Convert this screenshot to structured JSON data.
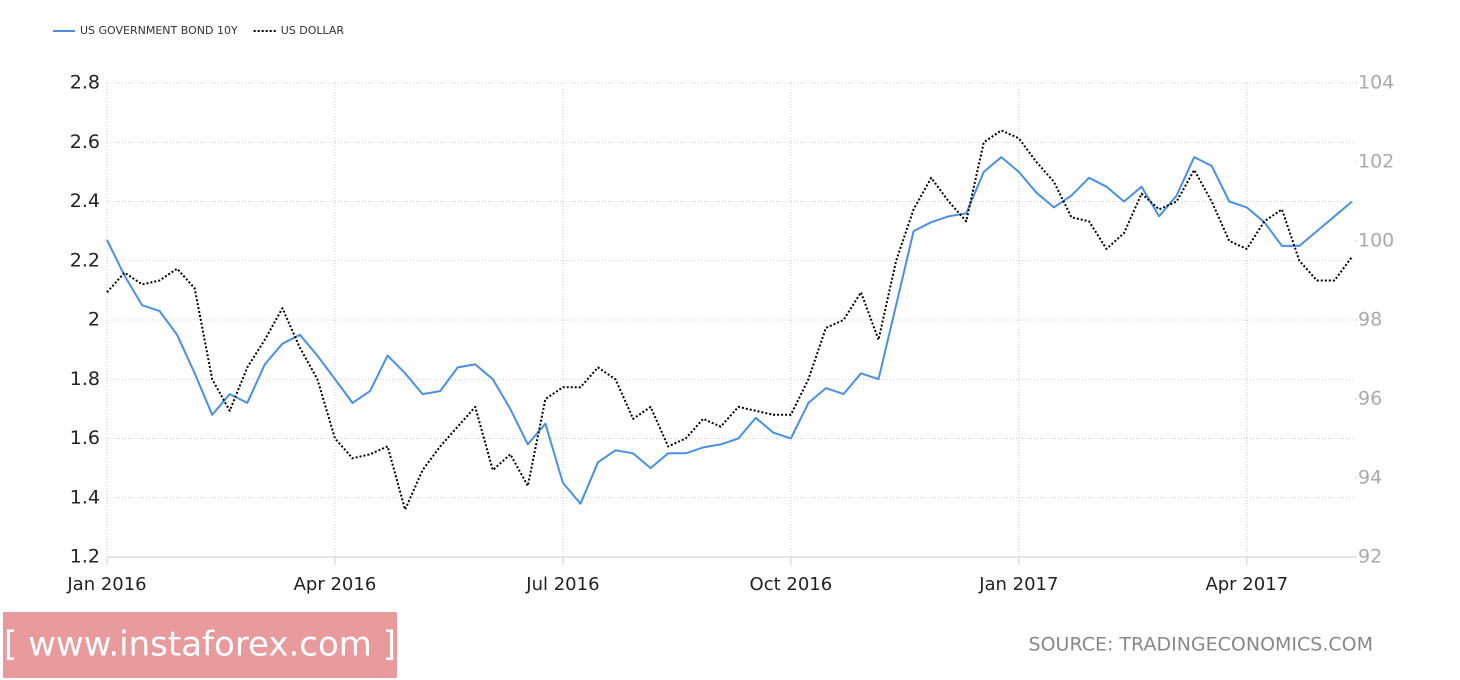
{
  "chart_data": {
    "type": "line",
    "legend": "top-left",
    "grid": true,
    "categories": [
      "Jan 2016",
      null,
      null,
      null,
      null,
      null,
      null,
      null,
      null,
      null,
      null,
      null,
      null,
      "Apr 2016",
      null,
      null,
      null,
      null,
      null,
      null,
      null,
      null,
      null,
      null,
      null,
      null,
      "Jul 2016",
      null,
      null,
      null,
      null,
      null,
      null,
      null,
      null,
      null,
      null,
      null,
      null,
      "Oct 2016",
      null,
      null,
      null,
      null,
      null,
      null,
      null,
      null,
      null,
      null,
      null,
      null,
      "Jan 2017",
      null,
      null,
      null,
      null,
      null,
      null,
      null,
      null,
      null,
      null,
      null,
      null,
      "Apr 2017",
      null,
      null,
      null,
      null,
      null,
      null
    ],
    "series": [
      {
        "name": "US GOVERNMENT BOND 10Y",
        "color": "#4a90e2",
        "style": "solid",
        "axis": "y",
        "values": [
          2.27,
          2.15,
          2.05,
          2.03,
          1.95,
          1.82,
          1.68,
          1.75,
          1.72,
          1.85,
          1.92,
          1.95,
          1.88,
          1.8,
          1.72,
          1.76,
          1.88,
          1.82,
          1.75,
          1.76,
          1.84,
          1.85,
          1.8,
          1.7,
          1.58,
          1.65,
          1.45,
          1.38,
          1.52,
          1.56,
          1.55,
          1.5,
          1.55,
          1.55,
          1.57,
          1.58,
          1.6,
          1.67,
          1.62,
          1.6,
          1.72,
          1.77,
          1.75,
          1.82,
          1.8,
          2.05,
          2.3,
          2.33,
          2.35,
          2.36,
          2.5,
          2.55,
          2.5,
          2.43,
          2.38,
          2.42,
          2.48,
          2.45,
          2.4,
          2.45,
          2.35,
          2.42,
          2.55,
          2.52,
          2.4,
          2.38,
          2.33,
          2.25,
          2.25,
          2.3,
          2.35,
          2.4
        ]
      },
      {
        "name": "US DOLLAR",
        "color": "#000000",
        "style": "dotted",
        "axis": "y2",
        "values": [
          98.7,
          99.2,
          98.9,
          99.0,
          99.3,
          98.8,
          96.5,
          95.7,
          96.8,
          97.5,
          98.3,
          97.3,
          96.5,
          95.0,
          94.5,
          94.6,
          94.8,
          93.2,
          94.2,
          94.8,
          95.3,
          95.8,
          94.2,
          94.6,
          93.8,
          96.0,
          96.3,
          96.3,
          96.8,
          96.5,
          95.5,
          95.8,
          94.8,
          95.0,
          95.5,
          95.3,
          95.8,
          95.7,
          95.6,
          95.6,
          96.5,
          97.8,
          98.0,
          98.7,
          97.5,
          99.5,
          100.8,
          101.6,
          101.0,
          100.5,
          102.5,
          102.8,
          102.6,
          102.0,
          101.5,
          100.6,
          100.5,
          99.8,
          100.2,
          101.2,
          100.8,
          101.0,
          101.8,
          101.0,
          100.0,
          99.8,
          100.5,
          100.8,
          99.5,
          99.0,
          99.0,
          99.6
        ]
      }
    ],
    "ylim": [
      1.2,
      2.8
    ],
    "yticks": [
      1.2,
      1.4,
      1.6,
      1.8,
      2,
      2.2,
      2.4,
      2.6,
      2.8
    ],
    "y2lim": [
      92,
      104
    ],
    "y2ticks": [
      92,
      94,
      96,
      98,
      100,
      102,
      104
    ],
    "source": "SOURCE: TRADINGECONOMICS.COM",
    "watermark": "[ www.instaforex.com ]"
  }
}
